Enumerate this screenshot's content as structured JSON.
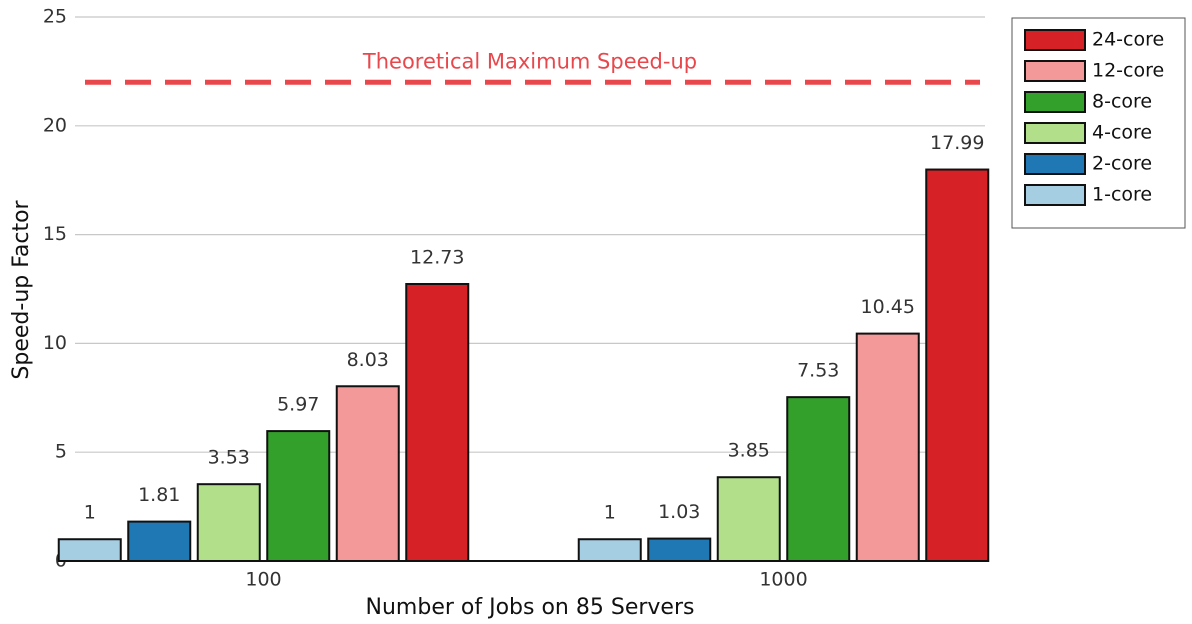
{
  "chart_data": {
    "type": "bar",
    "x_label": "Number of Jobs on 85 Servers",
    "y_label": "Speed-up Factor",
    "categories": [
      "100",
      "1000"
    ],
    "series": [
      {
        "name": "1-core",
        "color": "#a6cee3",
        "values": [
          1,
          1
        ]
      },
      {
        "name": "2-core",
        "color": "#1f78b4",
        "values": [
          1.81,
          1.03
        ]
      },
      {
        "name": "4-core",
        "color": "#b2df8a",
        "values": [
          3.53,
          3.85
        ]
      },
      {
        "name": "8-core",
        "color": "#33a02c",
        "values": [
          5.97,
          7.53
        ]
      },
      {
        "name": "12-core",
        "color": "#f4999a",
        "values": [
          8.03,
          10.45
        ]
      },
      {
        "name": "24-core",
        "color": "#d62226",
        "values": [
          12.73,
          17.99
        ]
      }
    ],
    "reference_line": {
      "value": 22,
      "label": "Theoretical Maximum Speed-up",
      "color": "#e8474c"
    },
    "ylim": [
      0,
      25
    ],
    "yticks": [
      0,
      5,
      10,
      15,
      20,
      25
    ],
    "grid": true,
    "legend": "top-right"
  }
}
